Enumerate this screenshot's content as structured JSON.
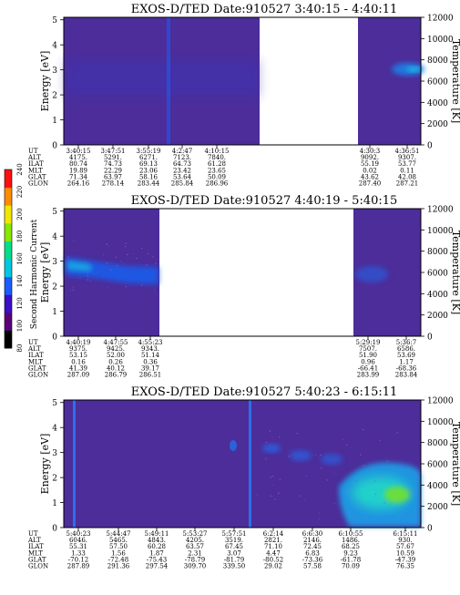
{
  "chart_data": [
    {
      "type": "heatmap",
      "title": "EXOS-D/TED   Date:910527  3:40:15 - 4:40:11",
      "ylabel": "Energy [eV]",
      "y2label": "Temperature [K]",
      "ylim": [
        0,
        5.1
      ],
      "y2lim": [
        0,
        12000
      ],
      "yticks": [
        "0",
        "1",
        "2",
        "3",
        "4",
        "5"
      ],
      "y2ticks": [
        "0",
        "2000",
        "4000",
        "6000",
        "8000",
        "10000",
        "12000"
      ],
      "rows": {
        "labels": [
          "UT",
          "ALT",
          "ILAT",
          "MLT",
          "GLAT",
          "GLON"
        ],
        "columns": [
          [
            "3:40:15",
            "4175.",
            "80.74",
            "19.89",
            "71.34",
            "264.16"
          ],
          [
            "3:47:51",
            "5291.",
            "74.73",
            "22.29",
            "63.97",
            "278.14"
          ],
          [
            "3:55:19",
            "6271.",
            "69.13",
            "23.06",
            "58.16",
            "283.44"
          ],
          [
            "4:2:47",
            "7123.",
            "64.73",
            "23.42",
            "53.64",
            "285.84"
          ],
          [
            "4:10:15",
            "7840.",
            "61.28",
            "23.65",
            "50.09",
            "286.96"
          ],
          [
            "4:30:3",
            "9092.",
            "55.19",
            "0.02",
            "43.62",
            "287.40"
          ],
          [
            "4:36:51",
            "9307.",
            "53.77",
            "0.11",
            "42.08",
            "287.21"
          ]
        ]
      }
    },
    {
      "type": "heatmap",
      "title": "EXOS-D/TED   Date:910527  4:40:19 - 5:40:15",
      "ylabel": "Energy [eV]",
      "y2label": "Temperature [K]",
      "ylim": [
        0,
        5.1
      ],
      "y2lim": [
        0,
        12000
      ],
      "yticks": [
        "0",
        "1",
        "2",
        "3",
        "4",
        "5"
      ],
      "y2ticks": [
        "0",
        "2000",
        "4000",
        "6000",
        "8000",
        "10000",
        "12000"
      ],
      "rows": {
        "labels": [
          "UT",
          "ALT",
          "ILAT",
          "MLT",
          "GLAT",
          "GLON"
        ],
        "columns": [
          [
            "4:40:19",
            "9375.",
            "53.15",
            "0.16",
            "41.39",
            "287.09"
          ],
          [
            "4:47:55",
            "9425.",
            "52.00",
            "0.26",
            "40.12",
            "286.79"
          ],
          [
            "4:55:23",
            "9343.",
            "51.14",
            "0.36",
            "39.17",
            "286.51"
          ],
          [
            "5:29:19",
            "7507.",
            "51.90",
            "0.96",
            "-66.41",
            "283.99"
          ],
          [
            "5:36:7",
            "6586.",
            "53.69",
            "1.17",
            "-68.36",
            "283.84"
          ]
        ]
      }
    },
    {
      "type": "heatmap",
      "title": "EXOS-D/TED   Date:910527  5:40:23 - 6:15:11",
      "ylabel": "Energy [eV]",
      "y2label": "Temperature [K]",
      "ylim": [
        0,
        5.1
      ],
      "y2lim": [
        0,
        12000
      ],
      "yticks": [
        "0",
        "1",
        "2",
        "3",
        "4",
        "5"
      ],
      "y2ticks": [
        "0",
        "2000",
        "4000",
        "6000",
        "8000",
        "10000",
        "12000"
      ],
      "rows": {
        "labels": [
          "UT",
          "ALT",
          "ILAT",
          "MLT",
          "GLAT",
          "GLON"
        ],
        "columns": [
          [
            "5:40:23",
            "6046.",
            "55.31",
            "1.33",
            "-70.12",
            "287.89"
          ],
          [
            "5:44:47",
            "5465.",
            "57.50",
            "1.56",
            "-72.48",
            "291.36"
          ],
          [
            "5:49:11",
            "4843.",
            "60.28",
            "1.87",
            "-75.43",
            "297.54"
          ],
          [
            "5:53:27",
            "4205.",
            "63.57",
            "2.31",
            "-78.79",
            "309.70"
          ],
          [
            "5:57:51",
            "3519.",
            "67.45",
            "3.07",
            "-81.79",
            "339.50"
          ],
          [
            "6:2:14",
            "2821.",
            "71.10",
            "4.47",
            "-80.52",
            "29.02"
          ],
          [
            "6:6:30",
            "2146.",
            "72.45",
            "6.83",
            "-73.36",
            "57.58"
          ],
          [
            "6:10:55",
            "1486.",
            "68.25",
            "9.23",
            "-61.78",
            "70.09"
          ],
          [
            "6:15:11",
            "930.",
            "57.67",
            "10.59",
            "-47.39",
            "76.35"
          ]
        ]
      }
    }
  ],
  "colorbar": {
    "label": "Second Harmonic Current",
    "ticks": [
      "80",
      "100",
      "120",
      "140",
      "160",
      "180",
      "200",
      "220",
      "240"
    ],
    "colors": [
      "#000000",
      "#5a007a",
      "#3a10c8",
      "#1a5cff",
      "#00c8e0",
      "#00e08a",
      "#88e800",
      "#f0e800",
      "#ff8c00",
      "#ff1010"
    ]
  },
  "colors": {
    "background": "#4c2d9a",
    "mid": "#1e5ae6",
    "high": "#1ee0c8",
    "peak": "#78e028"
  }
}
